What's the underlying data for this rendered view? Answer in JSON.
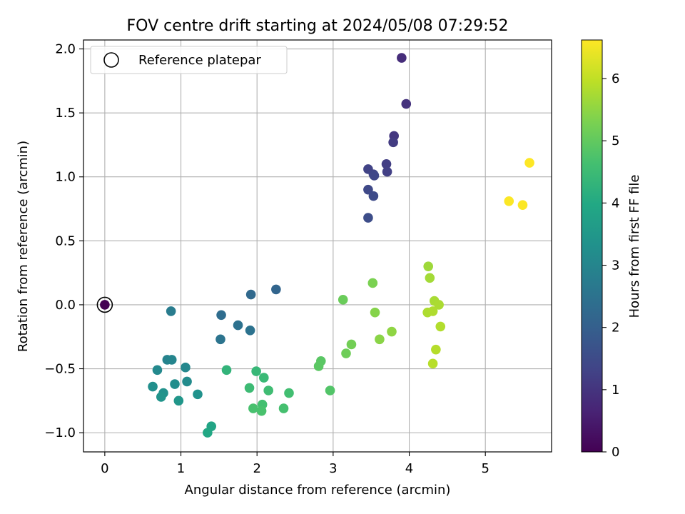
{
  "chart_data": {
    "type": "scatter",
    "title": "FOV centre drift starting at 2024/05/08 07:29:52",
    "xlabel": "Angular distance from reference (arcmin)",
    "ylabel": "Rotation from reference (arcmin)",
    "xlim": [
      -0.28,
      5.87
    ],
    "ylim": [
      -1.15,
      2.07
    ],
    "xticks": [
      0,
      1,
      2,
      3,
      4,
      5
    ],
    "xtick_labels": [
      "0",
      "1",
      "2",
      "3",
      "4",
      "5"
    ],
    "yticks": [
      -1.0,
      -0.5,
      0.0,
      0.5,
      1.0,
      1.5,
      2.0
    ],
    "ytick_labels": [
      "−1.0",
      "−0.5",
      "0.0",
      "0.5",
      "1.0",
      "1.5",
      "2.0"
    ],
    "grid": true,
    "legend": {
      "position": "top-left",
      "entries": [
        "Reference platepar"
      ]
    },
    "colorbar": {
      "label": "Hours from first FF file",
      "range": [
        0,
        6.62
      ],
      "ticks": [
        0,
        1,
        2,
        3,
        4,
        5,
        6
      ],
      "tick_labels": [
        "0",
        "1",
        "2",
        "3",
        "4",
        "5",
        "6"
      ],
      "colormap": "viridis"
    },
    "reference_point": {
      "x": 0,
      "y": 0
    },
    "points": [
      {
        "x": 0.0,
        "y": 0.0,
        "c": 0.0
      },
      {
        "x": 3.9,
        "y": 1.93,
        "c": 0.85
      },
      {
        "x": 3.96,
        "y": 1.57,
        "c": 0.95
      },
      {
        "x": 3.8,
        "y": 1.32,
        "c": 1.05
      },
      {
        "x": 3.79,
        "y": 1.27,
        "c": 1.15
      },
      {
        "x": 3.7,
        "y": 1.1,
        "c": 1.2
      },
      {
        "x": 3.71,
        "y": 1.04,
        "c": 1.25
      },
      {
        "x": 3.46,
        "y": 1.06,
        "c": 1.3
      },
      {
        "x": 3.53,
        "y": 1.02,
        "c": 1.35
      },
      {
        "x": 3.54,
        "y": 1.01,
        "c": 1.4
      },
      {
        "x": 3.46,
        "y": 0.9,
        "c": 1.45
      },
      {
        "x": 3.53,
        "y": 0.85,
        "c": 1.5
      },
      {
        "x": 3.46,
        "y": 0.68,
        "c": 1.55
      },
      {
        "x": 2.25,
        "y": 0.12,
        "c": 2.15
      },
      {
        "x": 1.92,
        "y": 0.08,
        "c": 2.25
      },
      {
        "x": 1.53,
        "y": -0.08,
        "c": 2.35
      },
      {
        "x": 1.75,
        "y": -0.16,
        "c": 2.45
      },
      {
        "x": 1.91,
        "y": -0.2,
        "c": 2.5
      },
      {
        "x": 1.52,
        "y": -0.27,
        "c": 2.55
      },
      {
        "x": 0.87,
        "y": -0.05,
        "c": 2.75
      },
      {
        "x": 0.82,
        "y": -0.43,
        "c": 2.95
      },
      {
        "x": 0.88,
        "y": -0.43,
        "c": 3.0
      },
      {
        "x": 1.06,
        "y": -0.49,
        "c": 3.05
      },
      {
        "x": 0.69,
        "y": -0.51,
        "c": 3.1
      },
      {
        "x": 1.08,
        "y": -0.6,
        "c": 3.15
      },
      {
        "x": 0.92,
        "y": -0.62,
        "c": 3.2
      },
      {
        "x": 0.63,
        "y": -0.64,
        "c": 3.25
      },
      {
        "x": 0.77,
        "y": -0.69,
        "c": 3.3
      },
      {
        "x": 1.22,
        "y": -0.7,
        "c": 3.35
      },
      {
        "x": 0.74,
        "y": -0.72,
        "c": 3.4
      },
      {
        "x": 0.97,
        "y": -0.75,
        "c": 3.45
      },
      {
        "x": 1.4,
        "y": -0.95,
        "c": 3.85
      },
      {
        "x": 1.35,
        "y": -1.0,
        "c": 3.95
      },
      {
        "x": 1.6,
        "y": -0.51,
        "c": 4.3
      },
      {
        "x": 1.99,
        "y": -0.52,
        "c": 4.4
      },
      {
        "x": 2.09,
        "y": -0.57,
        "c": 4.45
      },
      {
        "x": 1.9,
        "y": -0.65,
        "c": 4.5
      },
      {
        "x": 2.15,
        "y": -0.67,
        "c": 4.55
      },
      {
        "x": 2.42,
        "y": -0.69,
        "c": 4.6
      },
      {
        "x": 2.07,
        "y": -0.78,
        "c": 4.62
      },
      {
        "x": 2.35,
        "y": -0.81,
        "c": 4.65
      },
      {
        "x": 1.95,
        "y": -0.81,
        "c": 4.68
      },
      {
        "x": 2.06,
        "y": -0.83,
        "c": 4.7
      },
      {
        "x": 2.96,
        "y": -0.67,
        "c": 4.8
      },
      {
        "x": 2.84,
        "y": -0.44,
        "c": 4.9
      },
      {
        "x": 2.81,
        "y": -0.48,
        "c": 4.92
      },
      {
        "x": 3.13,
        "y": 0.04,
        "c": 5.1
      },
      {
        "x": 3.17,
        "y": -0.38,
        "c": 5.15
      },
      {
        "x": 3.24,
        "y": -0.31,
        "c": 5.2
      },
      {
        "x": 3.52,
        "y": 0.17,
        "c": 5.3
      },
      {
        "x": 3.55,
        "y": -0.06,
        "c": 5.4
      },
      {
        "x": 3.61,
        "y": -0.27,
        "c": 5.45
      },
      {
        "x": 3.77,
        "y": -0.21,
        "c": 5.5
      },
      {
        "x": 4.25,
        "y": 0.3,
        "c": 5.65
      },
      {
        "x": 4.27,
        "y": 0.21,
        "c": 5.7
      },
      {
        "x": 4.33,
        "y": 0.03,
        "c": 5.75
      },
      {
        "x": 4.39,
        "y": 0.0,
        "c": 5.78
      },
      {
        "x": 4.24,
        "y": -0.06,
        "c": 5.8
      },
      {
        "x": 4.31,
        "y": -0.05,
        "c": 5.82
      },
      {
        "x": 4.41,
        "y": -0.17,
        "c": 5.85
      },
      {
        "x": 4.35,
        "y": -0.35,
        "c": 5.88
      },
      {
        "x": 4.31,
        "y": -0.46,
        "c": 5.9
      },
      {
        "x": 5.31,
        "y": 0.81,
        "c": 6.6
      },
      {
        "x": 5.49,
        "y": 0.78,
        "c": 6.6
      },
      {
        "x": 5.58,
        "y": 1.11,
        "c": 6.62
      }
    ]
  }
}
